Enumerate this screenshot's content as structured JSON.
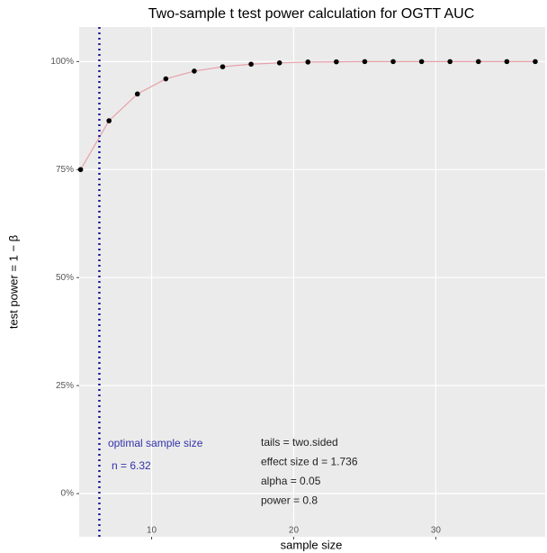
{
  "chart_data": {
    "type": "scatter",
    "title": "Two-sample t test power calculation for OGTT AUC",
    "x_label": "sample size",
    "y_label": "test power = 1 − β",
    "x": [
      5,
      7,
      9,
      11,
      13,
      15,
      17,
      19,
      21,
      23,
      25,
      27,
      29,
      31,
      33,
      35,
      37
    ],
    "series": [
      {
        "color": "#000000",
        "line_color": "#e8a0a8",
        "values": [
          75,
          86.3,
          92.5,
          96,
          97.8,
          98.8,
          99.4,
          99.7,
          99.9,
          99.95,
          100,
          100,
          100,
          100,
          100,
          100,
          100
        ]
      }
    ],
    "xlim": [
      4.9,
      37.7
    ],
    "ylim": [
      -10,
      108
    ],
    "xticks": [
      10,
      20,
      30
    ],
    "yticks": [
      {
        "value": 0,
        "label": "0%"
      },
      {
        "value": 25,
        "label": "25%"
      },
      {
        "value": 50,
        "label": "50%"
      },
      {
        "value": 75,
        "label": "75%"
      },
      {
        "value": 100,
        "label": "100%"
      }
    ],
    "vline": {
      "value": 6.32,
      "color": "#1a1a9a"
    },
    "annotations": [
      "optimal sample size",
      "n = 6.32"
    ],
    "annotation_color": "#3333aa",
    "parameters": [
      "tails = two.sided",
      "effect size d = 1.736",
      "alpha = 0.05",
      "power = 0.8"
    ],
    "grid": true
  }
}
